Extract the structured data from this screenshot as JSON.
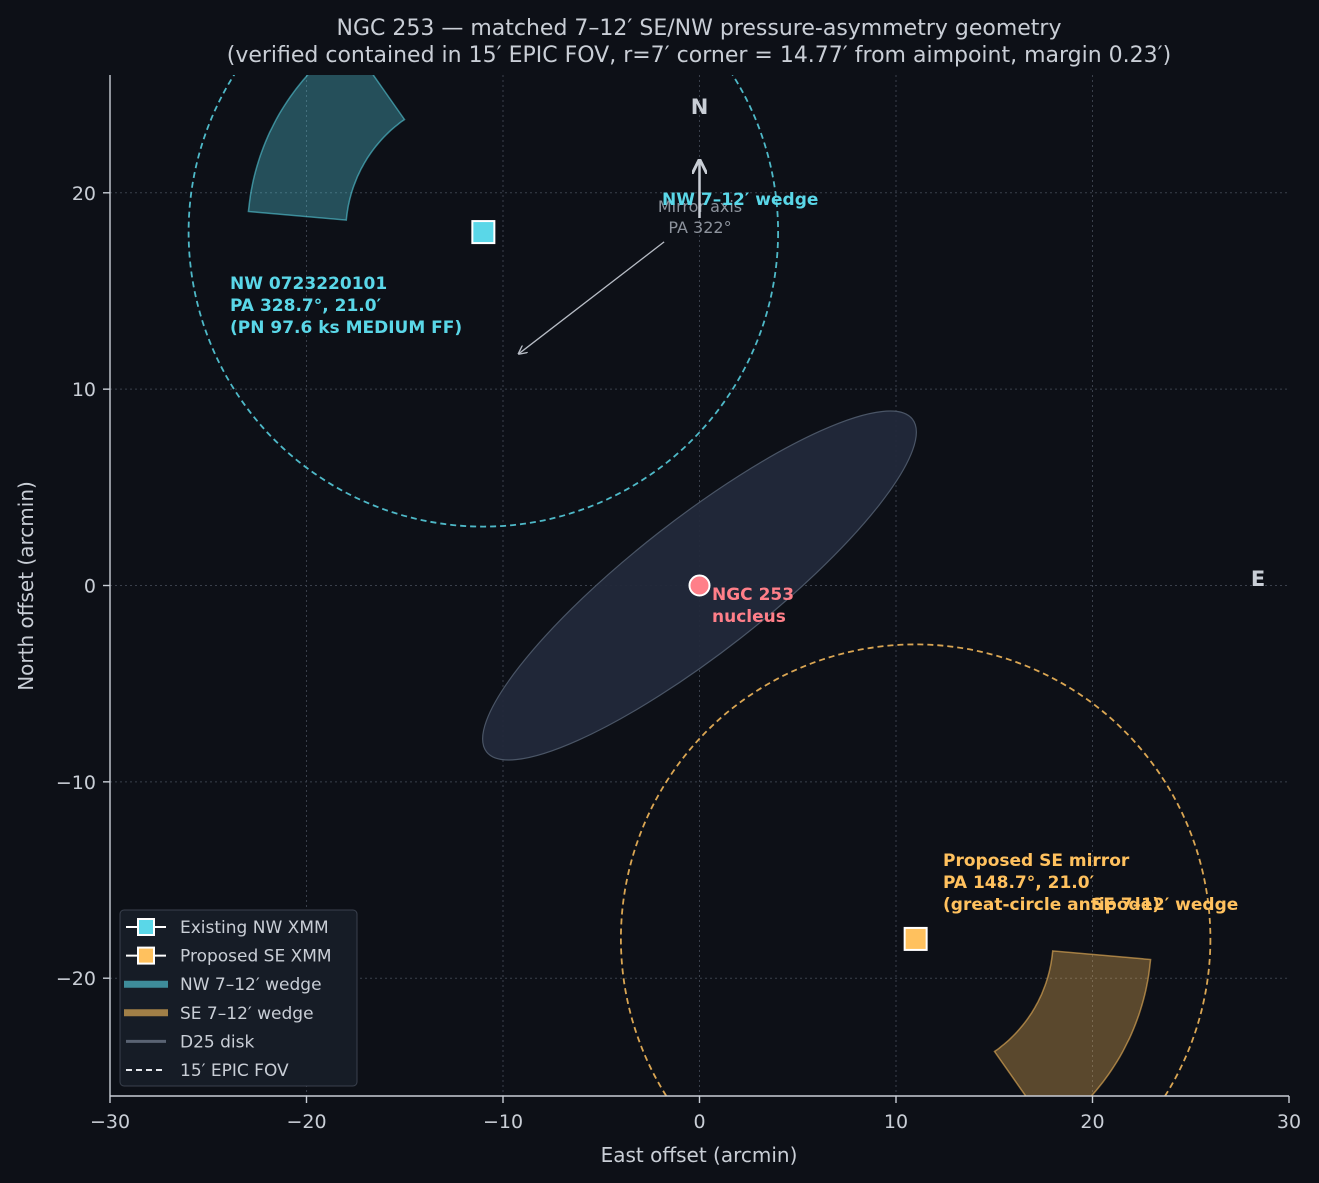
{
  "chart_data": {
    "type": "scatter",
    "title_line1": "NGC 253 — matched 7–12′ SE/NW pressure-asymmetry geometry",
    "title_line2": "(verified contained in 15′ EPIC FOV, r=7′ corner = 14.77′ from aimpoint, margin 0.23′)",
    "xlabel": "East offset (arcmin)",
    "ylabel": "North offset (arcmin)",
    "xlim": [
      -30,
      30
    ],
    "ylim": [
      -26,
      26
    ],
    "x_ticks": [
      -30,
      -20,
      -10,
      0,
      10,
      20,
      30
    ],
    "x_tick_labels": [
      "−30",
      "−20",
      "−10",
      "0",
      "10",
      "20",
      "30"
    ],
    "y_ticks": [
      -20,
      -10,
      0,
      10,
      20
    ],
    "y_tick_labels": [
      "−20",
      "−10",
      "0",
      "10",
      "20"
    ],
    "grid": true,
    "legend_position": "bottom-left",
    "colors": {
      "background": "#0d1017",
      "nw": "#5ad7e8",
      "se": "#ffc15e",
      "nucleus": "#ff7f89",
      "disk": "#22293a",
      "text": "#c9ced6"
    },
    "nucleus": {
      "x": 0,
      "y": 0,
      "label_line1": "NGC 253",
      "label_line2": "nucleus"
    },
    "d25_disk": {
      "center": [
        0,
        0
      ],
      "semi_major": 13.75,
      "semi_minor": 3.4,
      "pa_deg": 52
    },
    "pointings": [
      {
        "name": "Existing NW XMM",
        "x": -11,
        "y": 18,
        "fov_radius": 15,
        "color": "#5ad7e8",
        "label": [
          "NW 0723220101",
          "PA 328.7°, 21.0′",
          "(PN 97.6 ks MEDIUM FF)"
        ]
      },
      {
        "name": "Proposed SE XMM",
        "x": 11,
        "y": -18,
        "fov_radius": 15,
        "color": "#ffc15e",
        "label": [
          "Proposed SE mirror",
          "PA 148.7°, 21.0′",
          "(great-circle antipode)"
        ]
      }
    ],
    "wedges": [
      {
        "name": "NW 7–12′ wedge",
        "r_inner": 7,
        "r_outer": 12,
        "pa_start": 275,
        "pa_end": 325,
        "color": "#5ad7e8"
      },
      {
        "name": "SE 7–12′ wedge",
        "r_inner": 7,
        "r_outer": 12,
        "pa_start": 95,
        "pa_end": 145,
        "color": "#ffc15e"
      }
    ],
    "mirror_axis": {
      "label_line1": "Mirror axis",
      "label_line2": "PA 322°",
      "from": [
        -1.8,
        17.5
      ],
      "to": [
        -9.2,
        11.8
      ]
    },
    "compass": {
      "north_label": "N",
      "east_label": "E"
    },
    "legend": [
      "Existing NW XMM",
      "Proposed SE XMM",
      "NW 7–12′ wedge",
      "SE 7–12′ wedge",
      "D25 disk",
      "15′ EPIC FOV"
    ]
  }
}
